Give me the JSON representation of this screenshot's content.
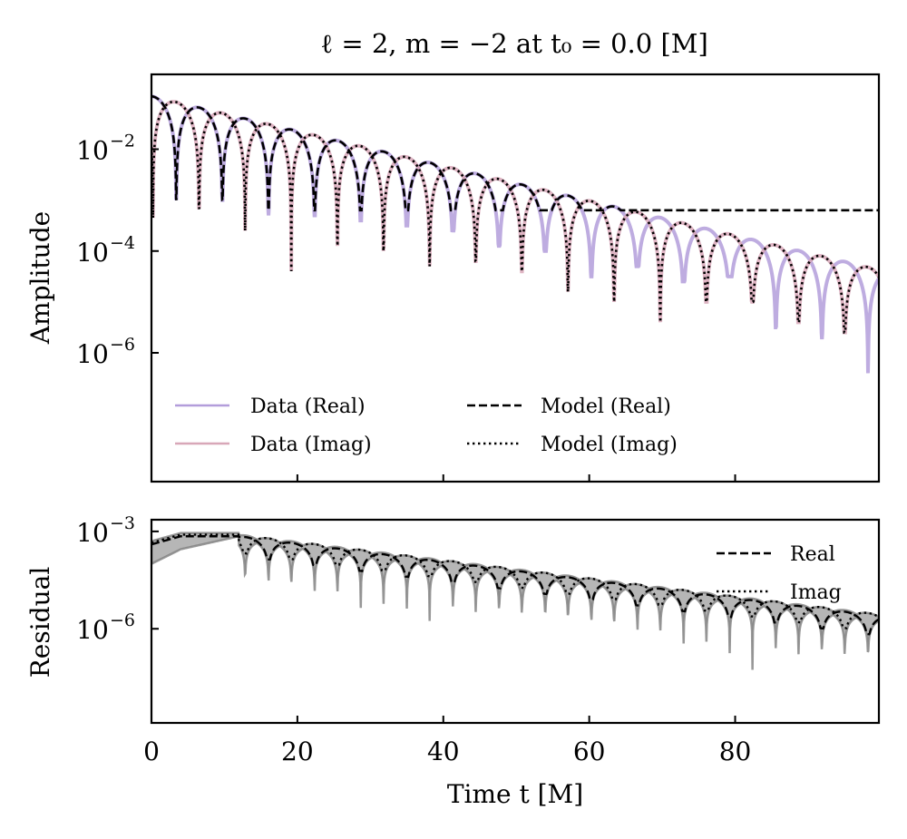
{
  "chart_data": [
    {
      "type": "line",
      "panel": "top",
      "title": "ℓ = 2, m = −2 at t₀ = 0.0 [M]",
      "xlabel": "",
      "ylabel": "Amplitude",
      "yscale": "log",
      "xlim": [
        0,
        99.7
      ],
      "ylim_log10": [
        -8.53,
        -0.53
      ],
      "ytick_labels": [
        {
          "base": "10",
          "exp": "−2",
          "log10": -2
        },
        {
          "base": "10",
          "exp": "−4",
          "log10": -4
        },
        {
          "base": "10",
          "exp": "−6",
          "log10": -6
        }
      ],
      "xticks": [
        20,
        40,
        60,
        80
      ],
      "legend": {
        "placement": "lower-left",
        "entries": [
          {
            "label": "Data (Real)",
            "style": "solid",
            "color": "#b39ddb"
          },
          {
            "label": "Data (Imag)",
            "style": "solid",
            "color": "#d8a7b8"
          },
          {
            "label": "Model (Real)",
            "style": "dashed",
            "color": "#000000"
          },
          {
            "label": "Model (Imag)",
            "style": "dotted",
            "color": "#000000"
          }
        ]
      },
      "series": [
        {
          "name": "Data (Real)",
          "quantity": "|Re h|",
          "color": "#b39ddb"
        },
        {
          "name": "Data (Imag)",
          "quantity": "|Im h|",
          "color": "#d8a7b8"
        },
        {
          "name": "Model (Real)",
          "quantity": "|Re h_model|",
          "color": "#000000"
        },
        {
          "name": "Model (Imag)",
          "quantity": "|Im h_model|",
          "color": "#000000"
        }
      ],
      "signal_model": {
        "peak_amplitude": 0.11,
        "decay_log10_per_M": 0.0342,
        "angular_frequency": 0.497,
        "real_first_zero_t": 3.4,
        "imag_first_zero_t": 0.2,
        "dip_depth_log10": [
          -3.0,
          -3.4,
          -3.0,
          -3.6,
          -3.3,
          -3.6,
          -3.3,
          -4.7,
          -3.4,
          -3.9,
          -3.5,
          -4.0,
          -3.6,
          -4.3,
          -3.9,
          -4.2,
          -4.0,
          -4.4,
          -4.5,
          -4.8,
          -4.3,
          -5.0,
          -4.6,
          -5.8,
          -4.5,
          -5.0,
          -5.5,
          -5.0,
          -5.7,
          -5.4,
          -6.4,
          -5.6,
          -5.6,
          -6.1,
          -5.8,
          -8.3,
          -6.4,
          -6.9,
          -6.0,
          -6.6
        ]
      }
    },
    {
      "type": "line",
      "panel": "bottom",
      "xlabel": "Time t [M]",
      "ylabel": "Residual",
      "yscale": "log",
      "xlim": [
        0,
        99.7
      ],
      "ylim_log10": [
        -8.9,
        -2.64
      ],
      "ytick_labels": [
        {
          "base": "10",
          "exp": "−3",
          "log10": -3
        },
        {
          "base": "10",
          "exp": "−6",
          "log10": -6
        }
      ],
      "xtick_labels": [
        "0",
        "20",
        "40",
        "60",
        "80"
      ],
      "xticks": [
        0,
        20,
        40,
        60,
        80
      ],
      "legend": {
        "placement": "upper-right",
        "entries": [
          {
            "label": "Real",
            "style": "dashed",
            "color": "#000000"
          },
          {
            "label": "Imag",
            "style": "dotted",
            "color": "#000000"
          }
        ]
      },
      "series": [
        {
          "name": "Real",
          "style": "dashed"
        },
        {
          "name": "Imag",
          "style": "dotted"
        },
        {
          "name": "Residual band",
          "style": "fill",
          "color": "#808080"
        }
      ],
      "signal_model": {
        "start_log10": -3.4,
        "plateau_log10": -3.15,
        "plateau_end_t": 12,
        "decay_log10_per_M": 0.028,
        "angular_frequency": 0.497,
        "band_dip_depth_log10": 1.6
      }
    }
  ]
}
